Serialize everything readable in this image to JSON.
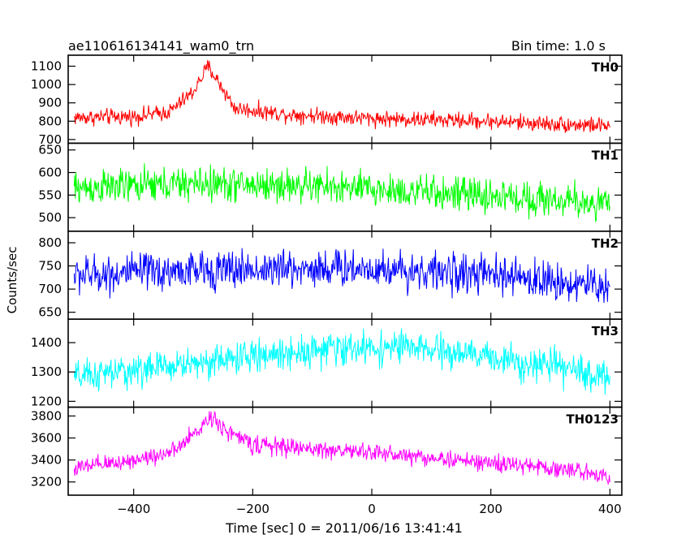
{
  "chart_data": {
    "type": "line",
    "title": "ae110616134141_wam0_trn",
    "subtitle": "Bin time: 1.0 s",
    "xlabel": "Time [sec] 0 = 2011/06/16 13:41:41",
    "ylabel": "Counts/sec",
    "xlim": [
      -510,
      420
    ],
    "x_ticks": [
      -400,
      -200,
      0,
      200,
      400
    ],
    "x_tick_labels": [
      "−400",
      "−200",
      "0",
      "200",
      "400"
    ],
    "x_range": [
      -500,
      400
    ],
    "bin_time": 1.0,
    "grid": false,
    "panels": [
      {
        "name": "TH0",
        "color": "#ff0000",
        "ylim": [
          680,
          1160
        ],
        "yticks": [
          700,
          800,
          900,
          1000,
          1100
        ],
        "trend": [
          [
            -500,
            820
          ],
          [
            -400,
            825
          ],
          [
            -340,
            850
          ],
          [
            -300,
            960
          ],
          [
            -275,
            1100
          ],
          [
            -255,
            1000
          ],
          [
            -230,
            870
          ],
          [
            -150,
            840
          ],
          [
            0,
            815
          ],
          [
            200,
            800
          ],
          [
            300,
            785
          ],
          [
            400,
            775
          ]
        ],
        "noise": 38
      },
      {
        "name": "TH1",
        "color": "#00ff00",
        "ylim": [
          470,
          665
        ],
        "yticks": [
          500,
          550,
          600,
          650
        ],
        "trend": [
          [
            -500,
            565
          ],
          [
            -300,
            575
          ],
          [
            -100,
            570
          ],
          [
            100,
            555
          ],
          [
            300,
            540
          ],
          [
            400,
            530
          ]
        ],
        "noise": 33
      },
      {
        "name": "TH2",
        "color": "#0000ff",
        "ylim": [
          635,
          825
        ],
        "yticks": [
          650,
          700,
          750,
          800
        ],
        "trend": [
          [
            -500,
            730
          ],
          [
            -300,
            740
          ],
          [
            -100,
            745
          ],
          [
            0,
            745
          ],
          [
            200,
            730
          ],
          [
            400,
            705
          ]
        ],
        "noise": 36
      },
      {
        "name": "TH3",
        "color": "#00ffff",
        "ylim": [
          1180,
          1480
        ],
        "yticks": [
          1200,
          1300,
          1400
        ],
        "trend": [
          [
            -500,
            1280
          ],
          [
            -300,
            1330
          ],
          [
            -100,
            1375
          ],
          [
            50,
            1385
          ],
          [
            200,
            1350
          ],
          [
            300,
            1320
          ],
          [
            400,
            1280
          ]
        ],
        "noise": 48
      },
      {
        "name": "TH0123",
        "color": "#ff00ff",
        "ylim": [
          3080,
          3880
        ],
        "yticks": [
          3200,
          3400,
          3600,
          3800
        ],
        "trend": [
          [
            -500,
            3320
          ],
          [
            -400,
            3400
          ],
          [
            -330,
            3480
          ],
          [
            -290,
            3680
          ],
          [
            -270,
            3800
          ],
          [
            -240,
            3650
          ],
          [
            -200,
            3540
          ],
          [
            -100,
            3500
          ],
          [
            0,
            3470
          ],
          [
            200,
            3370
          ],
          [
            300,
            3330
          ],
          [
            400,
            3260
          ]
        ],
        "noise": 70
      }
    ]
  }
}
